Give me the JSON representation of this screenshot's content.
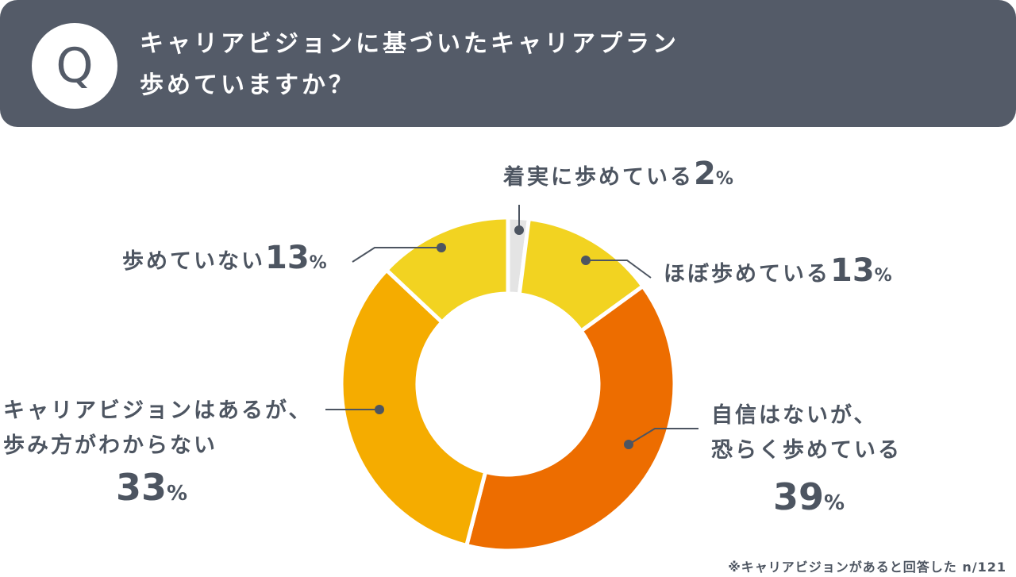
{
  "header": {
    "badge": "Q",
    "title_line1": "キャリアビジョンに基づいたキャリアプラン",
    "title_line2": "歩めていますか？"
  },
  "chart_data": {
    "type": "pie",
    "donut": true,
    "categories": [
      "着実に歩めている",
      "ほぼ歩めている",
      "自信はないが、恐らく歩めている",
      "キャリアビジョンはあるが、歩み方がわからない",
      "歩めていない"
    ],
    "values": [
      2,
      13,
      39,
      33,
      13
    ],
    "unit": "%",
    "colors": [
      "#e4e4e4",
      "#f2d321",
      "#ed6d00",
      "#f5ac00",
      "#f2d321"
    ],
    "labels": [
      {
        "lines": [
          "着実に歩めている"
        ],
        "value": "2",
        "unit": "%"
      },
      {
        "lines": [
          "ほぼ歩めている"
        ],
        "value": "13",
        "unit": "%"
      },
      {
        "lines": [
          "自信はないが、",
          "恐らく歩めている"
        ],
        "value": "39",
        "unit": "%"
      },
      {
        "lines": [
          "キャリアビジョンはあるが、",
          "歩み方がわからない"
        ],
        "value": "33",
        "unit": "%"
      },
      {
        "lines": [
          "歩めていない"
        ],
        "value": "13",
        "unit": "%"
      }
    ],
    "note": "※キャリアビジョンがあると回答した n/121"
  }
}
